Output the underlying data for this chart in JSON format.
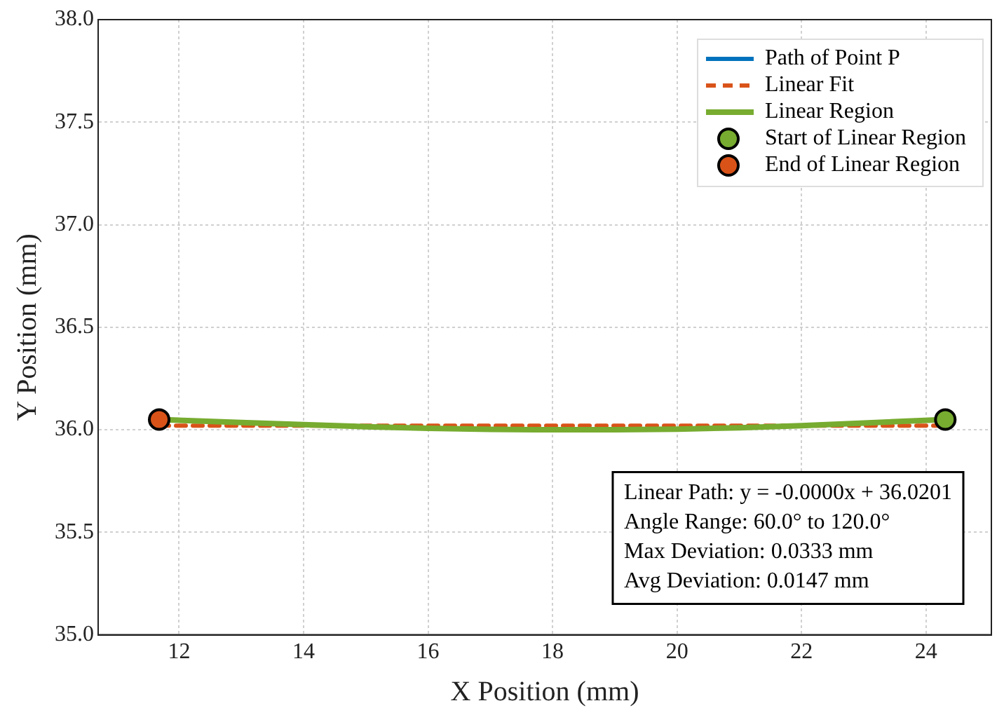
{
  "chart_data": {
    "type": "line",
    "xlabel": "X Position (mm)",
    "ylabel": "Y Position (mm)",
    "xlim": [
      10.7,
      25.05
    ],
    "xticks": [
      12,
      14,
      16,
      18,
      20,
      22,
      24
    ],
    "ylim": [
      35,
      38
    ],
    "yticks": [
      {
        "value": 35,
        "label": "35.0"
      },
      {
        "value": 35.5,
        "label": "35.5"
      },
      {
        "value": 36,
        "label": "36.0"
      },
      {
        "value": 36.5,
        "label": "36.5"
      },
      {
        "value": 37,
        "label": "37.0"
      },
      {
        "value": 37.5,
        "label": "37.5"
      },
      {
        "value": 38,
        "label": "38.0"
      }
    ],
    "grid": true,
    "legend": "top right",
    "series": [
      {
        "name": "Path of Point P",
        "color": "#0072bd",
        "values": [
          null
        ]
      },
      {
        "name": "Linear Fit",
        "line_style": "dashed",
        "color": "#d95319",
        "x": [
          11.68,
          24.31
        ],
        "values": [
          36.02,
          36.02
        ]
      },
      {
        "name": "Linear Region",
        "color": "#77ac30",
        "x": [
          11.68,
          13,
          14,
          15,
          16,
          17,
          18,
          19,
          20,
          21,
          22,
          23,
          24.31
        ],
        "values": [
          36.05,
          36.035,
          36.025,
          36.015,
          36.007,
          36.002,
          36.0,
          36.0,
          36.003,
          36.01,
          36.02,
          36.033,
          36.05
        ]
      },
      {
        "name": "Start of Linear Region",
        "type": "scatter",
        "marker": "circle",
        "color": "#77ac30",
        "x": [
          24.31
        ],
        "values": [
          36.05
        ]
      },
      {
        "name": "End of Linear Region",
        "type": "scatter",
        "marker": "circle",
        "color": "#d95319",
        "x": [
          11.68
        ],
        "values": [
          36.05
        ]
      }
    ],
    "annotations": [
      "Linear Path: y = -0.0000x + 36.0201",
      "Angle Range: 60.0° to 120.0°",
      "Max Deviation: 0.0333 mm",
      "Avg Deviation: 0.0147 mm"
    ]
  }
}
